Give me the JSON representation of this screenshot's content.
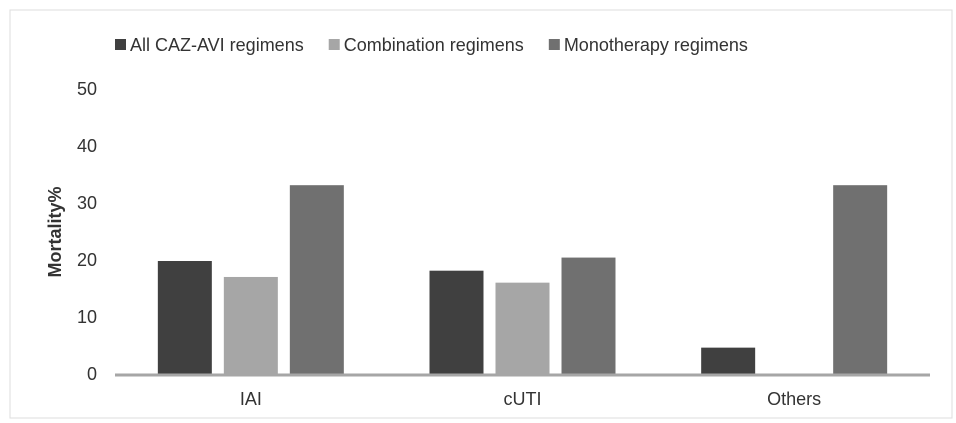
{
  "chart_data": {
    "type": "bar",
    "y_label": "Mortality%",
    "categories": [
      "IAI",
      "cUTI",
      "Others"
    ],
    "series": [
      {
        "name": "All CAZ-AVI regimens",
        "color": "#404040",
        "values": [
          20,
          18.3,
          4.8
        ]
      },
      {
        "name": "Combination regimens",
        "color": "#a6a6a6",
        "values": [
          17.2,
          16.2,
          0
        ]
      },
      {
        "name": "Monotherapy regimens",
        "color": "#707070",
        "values": [
          33.3,
          20.6,
          33.3
        ]
      }
    ],
    "ylim": [
      0,
      50
    ],
    "yticks": [
      0,
      10,
      20,
      30,
      40,
      50
    ],
    "grid": false
  }
}
